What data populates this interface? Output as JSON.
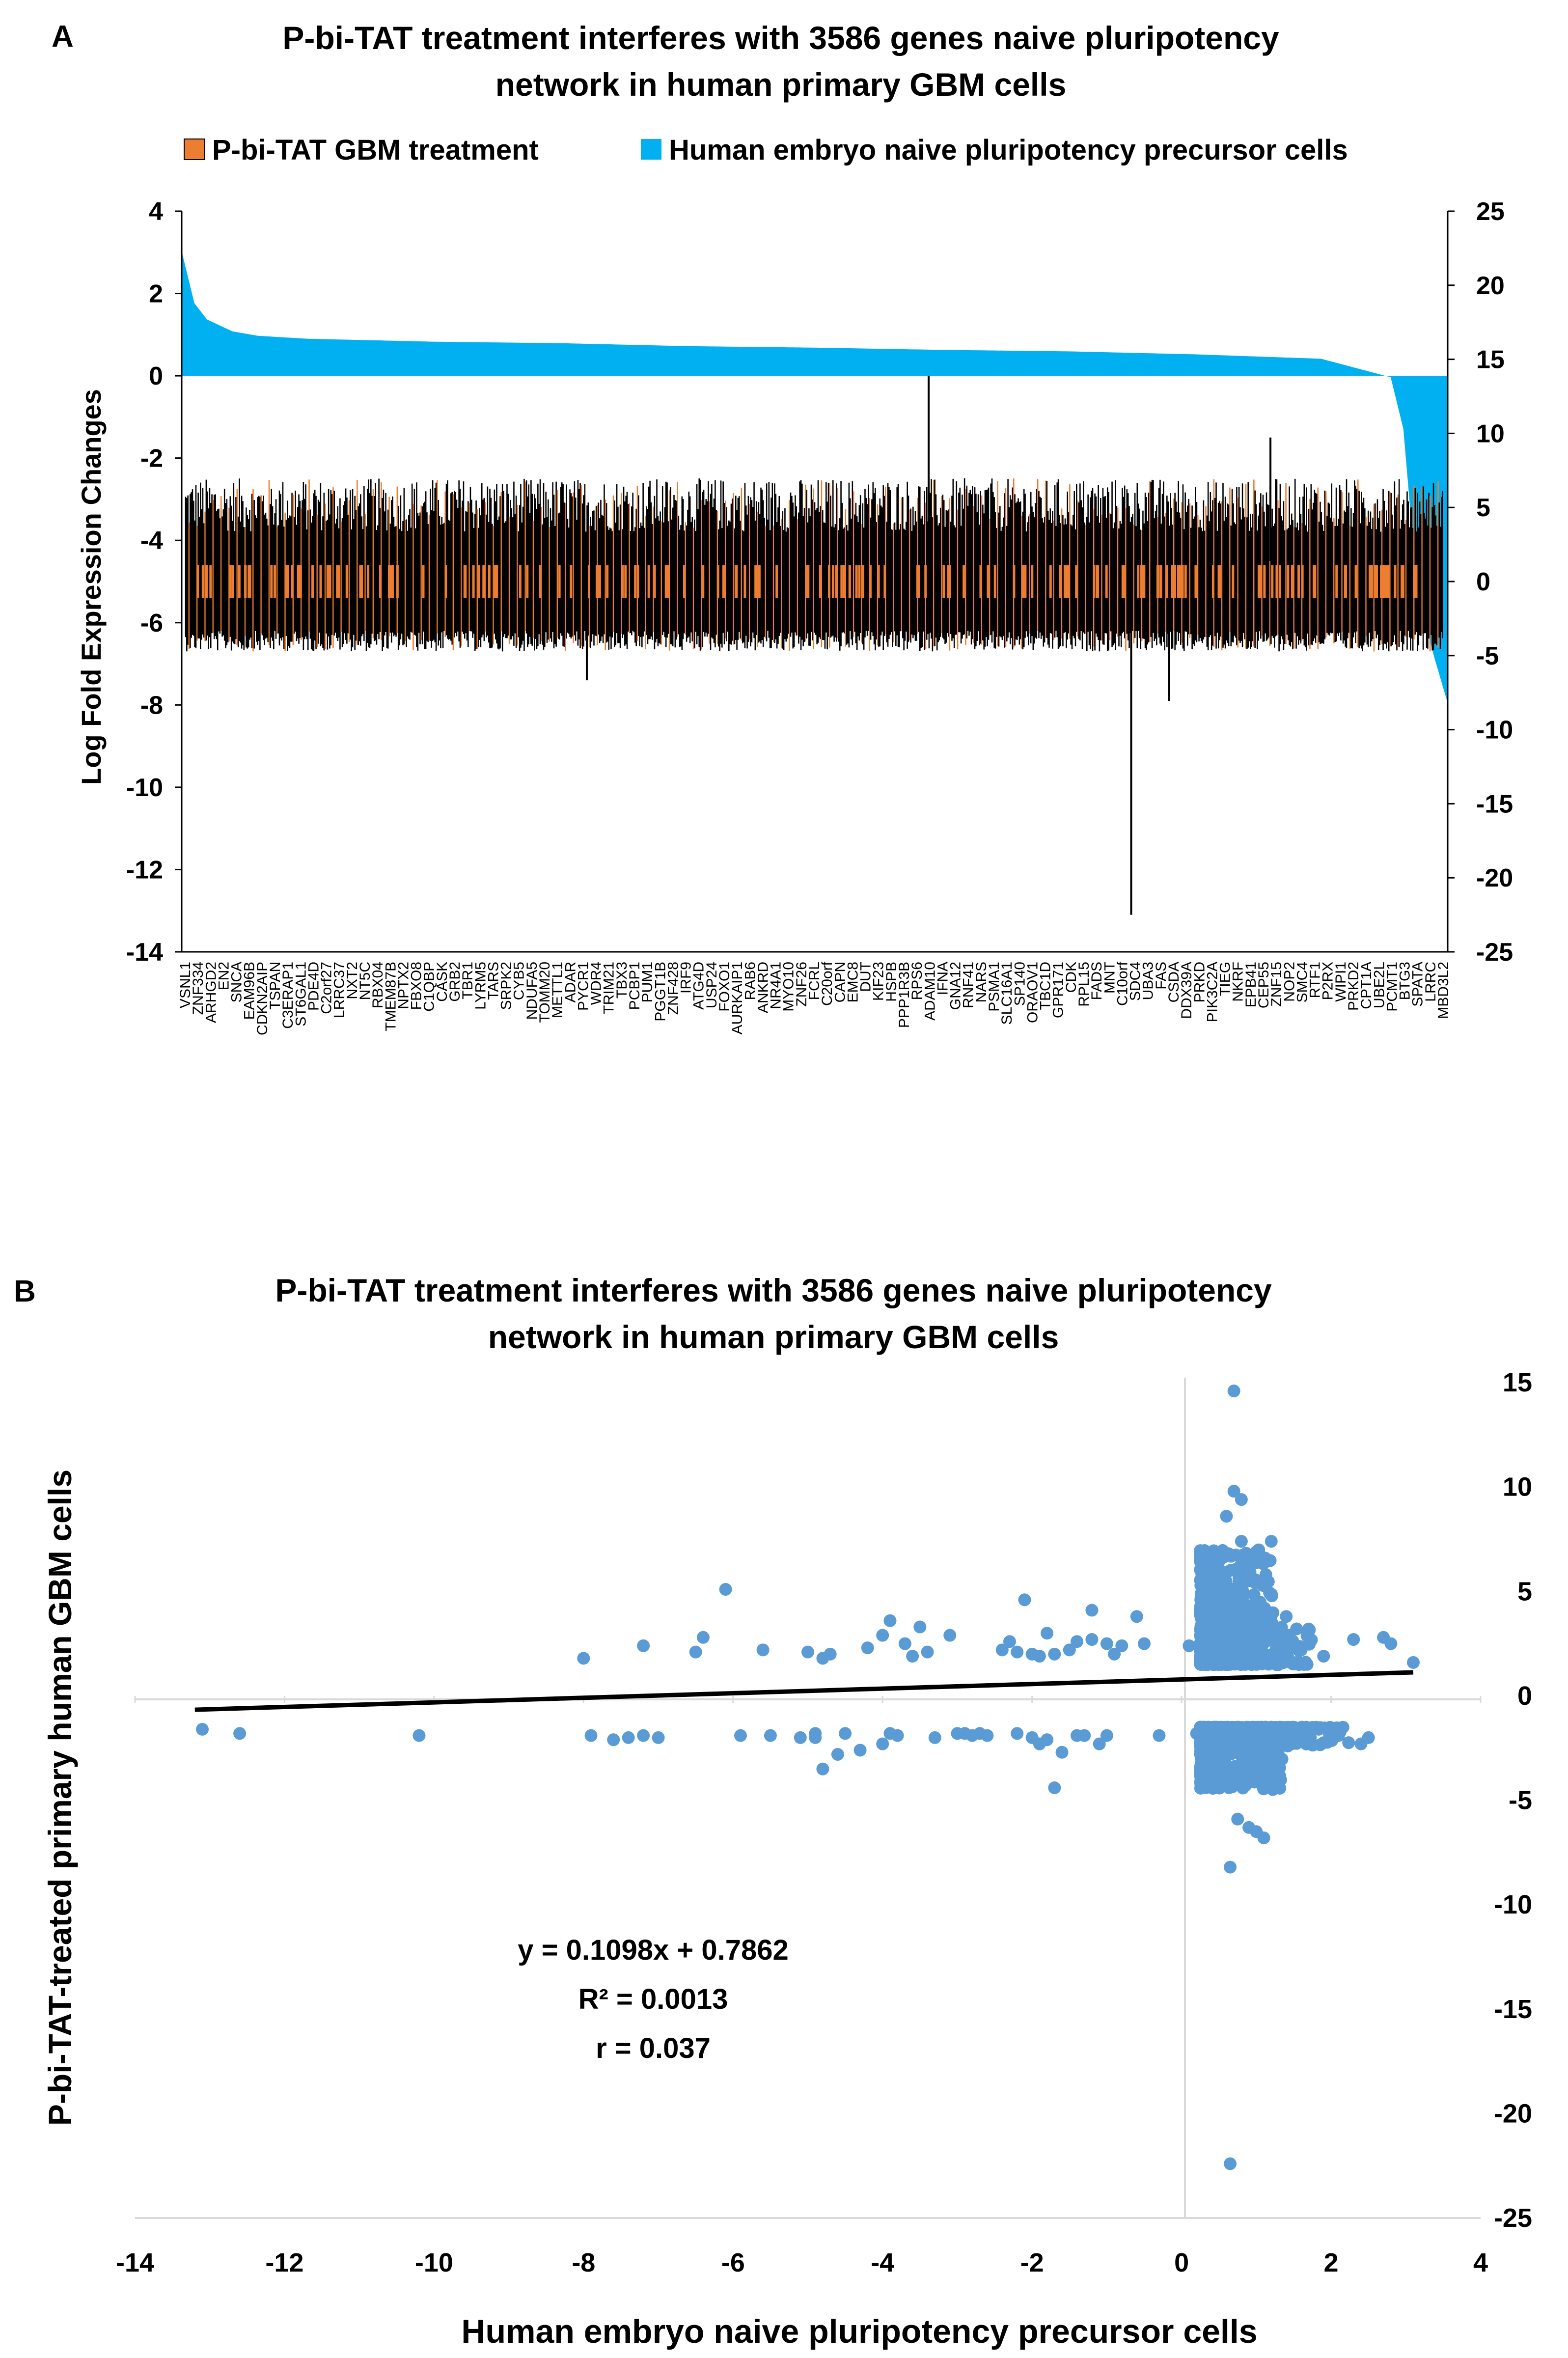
{
  "chart_data": [
    {
      "panel_label": "A",
      "type": "bar",
      "title": "P-bi-TAT treatment interferes with 3586 genes naive pluripotency network in human primary GBM cells",
      "title_lines": [
        "P-bi-TAT treatment interferes with 3586 genes naive pluripotency",
        "network in human primary GBM cells"
      ],
      "ylabel": "Log Fold Expression Changes",
      "ylim": [
        -14,
        4
      ],
      "y_ticks": [
        "4",
        "2",
        "0",
        "-2",
        "-4",
        "-6",
        "-8",
        "-10",
        "-12",
        "-14"
      ],
      "y2lim": [
        -25,
        25
      ],
      "y2_ticks": [
        "25",
        "20",
        "15",
        "10",
        "5",
        "0",
        "-5",
        "-10",
        "-15",
        "-20",
        "-25"
      ],
      "legend": [
        {
          "label": "P-bi-TAT GBM treatment",
          "color": "#ED7D31"
        },
        {
          "label": "Human embryo naive pluripotency precursor cells",
          "color": "#00B0F0"
        }
      ],
      "gene_labels": [
        "VSNL1",
        "ZNF334",
        "ARHGD2",
        "EN2",
        "SNCA",
        "EAM96B",
        "CDKN2AIP",
        "TSPAN",
        "C3ERAP1",
        "ST6GAL1",
        "PDE4D",
        "C2orf27",
        "LRRC37",
        "NXT2",
        "NT5C",
        "RBX04",
        "TMEM87B",
        "NPTX2",
        "FBXO8",
        "C1QBP",
        "CASK",
        "GRB2",
        "TBR1",
        "LYRM5",
        "TARS",
        "SRPK2",
        "CYB5",
        "NDUFA5",
        "TOMM20",
        "METTL1",
        "ADAR",
        "PYCR1",
        "WDR4",
        "TRIM21",
        "TBX3",
        "PCBP1",
        "PUM1",
        "PGGT1B",
        "ZNF428",
        "IRF9",
        "ATG4D",
        "USP24",
        "FOXO1",
        "AURKAIP1",
        "RAB6",
        "ANKRD",
        "NR4A1",
        "MYO10",
        "ZNF26",
        "FCRL",
        "C20orf",
        "CAPN",
        "EMC8",
        "DUT",
        "KIF23",
        "HSPB",
        "PPP1R3B",
        "RPS6",
        "ADAM10",
        "IFNA",
        "GNA12",
        "RNF41",
        "NARS",
        "PSMA1",
        "SLC16A1",
        "SP140",
        "ORAOV1",
        "TBC1D",
        "GPR171",
        "CDK",
        "RPL15",
        "FADS",
        "MNT",
        "C10orf",
        "SDC4",
        "UBA3",
        "FAS",
        "CSDA",
        "DDX39A",
        "PRKD",
        "PIK3C2A",
        "TIEG",
        "NKRF",
        "EPB41",
        "CEP55",
        "ZNF15",
        "NOP2",
        "SMC4",
        "RTF1",
        "P2RX",
        "WIPI1",
        "PRKD2",
        "CPT1A",
        "UBE2L",
        "PCMT1",
        "BTG3",
        "SPATA",
        "LRRC",
        "MBD3L2"
      ],
      "background_series": {
        "name": "Human embryo naive pluripotency precursor cells",
        "axis": "right",
        "values_sorted_profile": [
          22,
          18.5,
          17.4,
          16.6,
          16.3,
          16.1,
          15.9,
          15.8,
          15.6,
          15.5,
          15.35,
          15.25,
          15.05,
          14.75,
          13.5,
          10,
          0,
          -5,
          -8.5
        ],
        "gene_count": 3586
      },
      "foreground_series": {
        "name": "P-bi-TAT GBM treatment",
        "axis": "left",
        "baseline": -5.3,
        "typical_range": [
          -6.2,
          -3.4
        ],
        "outliers": [
          {
            "gene_index": 0.32,
            "value": -7.4
          },
          {
            "gene_index": 0.59,
            "value": 0
          },
          {
            "gene_index": 0.75,
            "value": -13.1
          },
          {
            "gene_index": 0.78,
            "value": -7.9
          },
          {
            "gene_index": 0.86,
            "value": -1.5
          }
        ]
      }
    },
    {
      "panel_label": "B",
      "type": "scatter",
      "title": "P-bi-TAT treatment interferes with 3586 genes naive pluripotency network in human primary GBM cells",
      "title_lines": [
        "P-bi-TAT treatment interferes with 3586 genes naive pluripotency",
        "network in human primary GBM cells"
      ],
      "xlabel": "Human embryo naive pluripotency precursor cells",
      "ylabel": "P-bi-TAT-treated primary human GBM cells",
      "xlim": [
        -14,
        4
      ],
      "ylim": [
        -25,
        15
      ],
      "x_ticks": [
        "-14",
        "-12",
        "-10",
        "-8",
        "-6",
        "-4",
        "-2",
        "0",
        "2",
        "4"
      ],
      "y_ticks": [
        "15",
        "10",
        "5",
        "0",
        "-5",
        "-10",
        "-15",
        "-20",
        "-25"
      ],
      "point_color": "#5B9BD5",
      "trendline": {
        "slope": 0.1098,
        "intercept": 0.7862,
        "x_range": [
          -13.2,
          3.1
        ]
      },
      "annotations": [
        "y = 0.1098x + 0.7862",
        "R² = 0.0013",
        "r = 0.037"
      ],
      "points": [
        [
          -13.1,
          -1.6
        ],
        [
          -12.6,
          -1.8
        ],
        [
          -10.2,
          -1.9
        ],
        [
          -8.0,
          1.8
        ],
        [
          -7.9,
          -1.9
        ],
        [
          -7.6,
          -2.1
        ],
        [
          -7.4,
          -2.0
        ],
        [
          -7.2,
          2.4
        ],
        [
          -7.2,
          -1.9
        ],
        [
          -7.0,
          -2.0
        ],
        [
          -6.5,
          2.1
        ],
        [
          -6.4,
          2.8
        ],
        [
          -6.1,
          5.1
        ],
        [
          -5.9,
          -1.9
        ],
        [
          -5.6,
          2.2
        ],
        [
          -5.5,
          -1.9
        ],
        [
          -5.1,
          -2.0
        ],
        [
          -5.0,
          2.1
        ],
        [
          -4.9,
          -1.8
        ],
        [
          -4.9,
          -2.0
        ],
        [
          -4.8,
          -3.5
        ],
        [
          -4.8,
          1.8
        ],
        [
          -4.7,
          2.0
        ],
        [
          -4.6,
          -2.8
        ],
        [
          -4.5,
          -1.8
        ],
        [
          -4.3,
          -2.6
        ],
        [
          -4.2,
          2.3
        ],
        [
          -4.0,
          2.9
        ],
        [
          -4.0,
          -2.3
        ],
        [
          -3.9,
          -1.8
        ],
        [
          -3.9,
          3.6
        ],
        [
          -3.8,
          -1.9
        ],
        [
          -3.7,
          2.5
        ],
        [
          -3.6,
          1.9
        ],
        [
          -3.5,
          3.3
        ],
        [
          -3.4,
          2.1
        ],
        [
          -3.3,
          -2.0
        ],
        [
          -3.1,
          2.9
        ],
        [
          -3.0,
          -1.8
        ],
        [
          -2.9,
          -1.8
        ],
        [
          -2.8,
          -1.9
        ],
        [
          -2.7,
          -1.8
        ],
        [
          -2.6,
          -1.9
        ],
        [
          -2.4,
          2.2
        ],
        [
          -2.3,
          2.6
        ],
        [
          -2.2,
          -1.8
        ],
        [
          -2.2,
          2.1
        ],
        [
          -2.1,
          4.6
        ],
        [
          -2.0,
          -2.0
        ],
        [
          -2.0,
          2.0
        ],
        [
          -1.9,
          -2.3
        ],
        [
          -1.9,
          1.9
        ],
        [
          -1.8,
          -2.1
        ],
        [
          -1.8,
          3.0
        ],
        [
          -1.7,
          -4.4
        ],
        [
          -1.7,
          2.0
        ],
        [
          -1.6,
          -2.7
        ],
        [
          -1.5,
          2.2
        ],
        [
          -1.4,
          -1.9
        ],
        [
          -1.4,
          2.6
        ],
        [
          -1.3,
          -1.9
        ],
        [
          -1.2,
          2.7
        ],
        [
          -1.2,
          4.1
        ],
        [
          -1.1,
          -2.3
        ],
        [
          -1.0,
          2.5
        ],
        [
          -1.0,
          -1.9
        ],
        [
          -0.9,
          2.0
        ],
        [
          -0.8,
          2.4
        ],
        [
          -0.6,
          3.8
        ],
        [
          -0.5,
          2.5
        ],
        [
          -0.3,
          -1.9
        ],
        [
          0.1,
          2.4
        ],
        [
          0.2,
          -1.8
        ],
        [
          0.3,
          -2.4
        ],
        [
          0.3,
          4.6
        ],
        [
          0.6,
          8.6
        ],
        [
          0.65,
          -8.2
        ],
        [
          0.65,
          -22.4
        ],
        [
          0.7,
          9.8
        ],
        [
          0.7,
          14.6
        ],
        [
          0.75,
          -5.9
        ],
        [
          0.8,
          7.4
        ],
        [
          0.8,
          9.4
        ],
        [
          0.9,
          -6.3
        ],
        [
          1.0,
          6.9
        ],
        [
          1.0,
          -6.5
        ],
        [
          1.1,
          -6.8
        ],
        [
          1.2,
          7.4
        ],
        [
          1.4,
          3.8
        ],
        [
          1.6,
          2.2
        ],
        [
          1.7,
          3.2
        ],
        [
          1.9,
          1.9
        ],
        [
          2.1,
          -1.9
        ],
        [
          2.3,
          2.7
        ],
        [
          2.4,
          -2.3
        ],
        [
          2.5,
          -2.0
        ],
        [
          2.7,
          2.8
        ],
        [
          2.8,
          2.5
        ],
        [
          3.1,
          1.6
        ]
      ],
      "dense_clusters": [
        {
          "x_range": [
            0.2,
            1.8
          ],
          "y_range": [
            1.5,
            7.0
          ]
        },
        {
          "x_range": [
            0.2,
            2.3
          ],
          "y_range": [
            -4.5,
            -1.5
          ]
        }
      ]
    }
  ]
}
